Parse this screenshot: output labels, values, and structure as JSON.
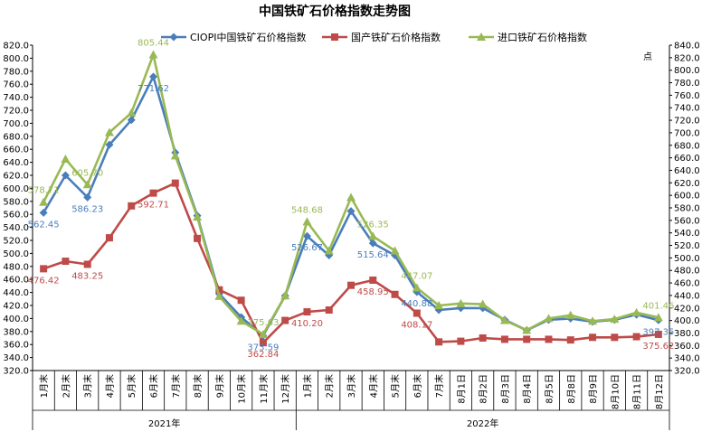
{
  "chart_data": {
    "type": "line",
    "title": "中国铁矿石价格指数走势图",
    "y2_unit": "点",
    "ylim": [
      320,
      820
    ],
    "y_step": 20,
    "y2lim": [
      320,
      840
    ],
    "y2_step": 20,
    "categories": [
      "1月末",
      "2月末",
      "3月末",
      "4月末",
      "5月末",
      "6月末",
      "7月末",
      "8月末",
      "9月末",
      "10月末",
      "11月末",
      "12月末",
      "1月末",
      "2月末",
      "3月末",
      "4月末",
      "5月末",
      "6月末",
      "7月末",
      "8月1日",
      "8月2日",
      "8月3日",
      "8月4日",
      "8月5日",
      "8月8日",
      "8月9日",
      "8月10日",
      "8月11日",
      "8月12日"
    ],
    "year_groups": [
      {
        "label": "2021年",
        "count": 12
      },
      {
        "label": "2022年",
        "count": 17
      }
    ],
    "series": [
      {
        "name": "CIOPI中国铁矿石价格指数",
        "color": "#4a7ebb",
        "marker": "diamond",
        "values": [
          562.45,
          620,
          586.23,
          667,
          705,
          771.62,
          655,
          558,
          438,
          402,
          373.59,
          435,
          526.67,
          497,
          565,
          515.64,
          497,
          440.88,
          413,
          416,
          416,
          398,
          382,
          398,
          400,
          395,
          398,
          406,
          397.35
        ],
        "labels": {
          "0": "562.45",
          "2": "586.23",
          "5": "771.62",
          "10": "373.59",
          "12": "526.67",
          "15": "515.64",
          "17": "440.88",
          "28": "397.35"
        }
      },
      {
        "name": "国产铁矿石价格指数",
        "color": "#be4b48",
        "marker": "square",
        "values": [
          476.42,
          488,
          483.25,
          524,
          573,
          592.71,
          608,
          523,
          444,
          428,
          362.84,
          397,
          410.2,
          413,
          451,
          458.95,
          437,
          408.17,
          364,
          365,
          370,
          368,
          368,
          368,
          367,
          371,
          371,
          372,
          375.62
        ],
        "labels": {
          "0": "476.42",
          "2": "483.25",
          "5": "592.71",
          "10": "362.84",
          "12": "410.20",
          "15": "458.95",
          "17": "408.17",
          "28": "375.62"
        }
      },
      {
        "name": "进口铁矿石价格指数",
        "color": "#98b954",
        "marker": "triangle",
        "values": [
          578.71,
          645,
          605.7,
          686,
          716,
          805.44,
          650,
          556,
          434,
          396,
          375.63,
          435,
          548.68,
          504,
          586,
          526.35,
          504,
          447.07,
          420,
          423,
          422,
          397,
          382,
          400,
          405,
          396,
          399,
          409,
          401.46
        ],
        "labels": {
          "0": "578.71",
          "2": "605.70",
          "5": "805.44",
          "10": "375.63",
          "12": "548.68",
          "15": "526.35",
          "17": "447.07",
          "28": "401.46"
        }
      }
    ],
    "legend_position": "top",
    "grid": false
  }
}
